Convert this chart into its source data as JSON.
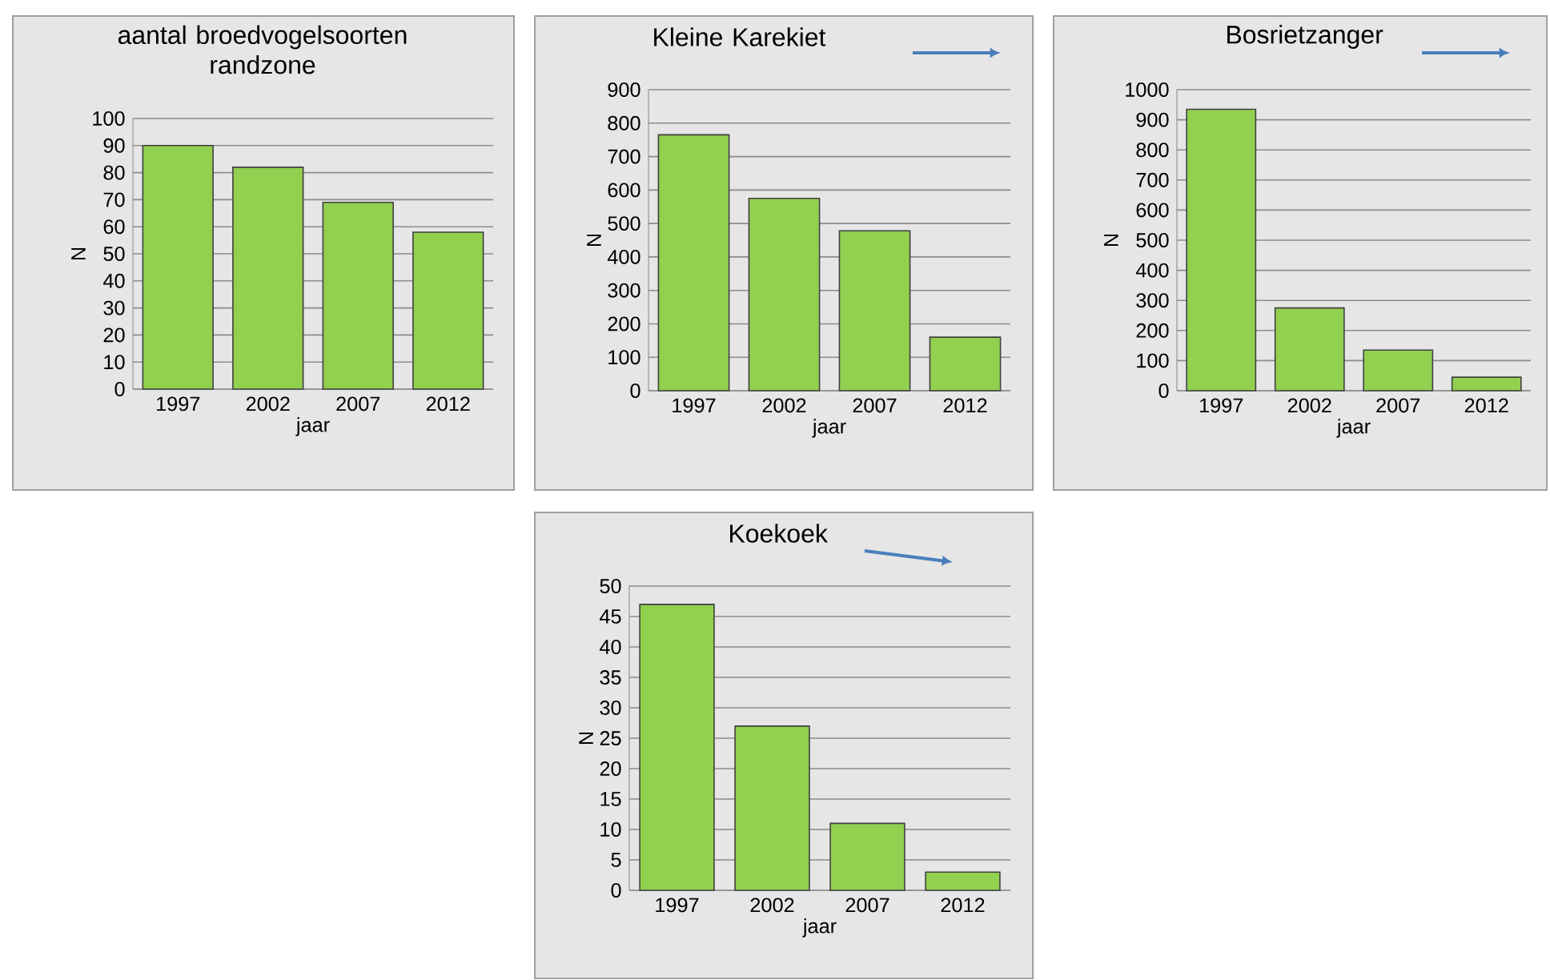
{
  "chart_data": [
    {
      "type": "bar",
      "title": "aantal broedvogelsoorten randzone",
      "xlabel": "jaar",
      "ylabel": "N",
      "categories": [
        "1997",
        "2002",
        "2007",
        "2012"
      ],
      "values": [
        90,
        82,
        69,
        58
      ],
      "color": "#92d050",
      "ylim": [
        0,
        100
      ],
      "yticks": [
        0,
        10,
        20,
        30,
        40,
        50,
        60,
        70,
        80,
        90,
        100
      ],
      "grid": "y"
    },
    {
      "type": "bar",
      "title": "Kleine Karekiet",
      "xlabel": "jaar",
      "ylabel": "N",
      "categories": [
        "1997",
        "2002",
        "2007",
        "2012"
      ],
      "values": [
        765,
        575,
        478,
        160
      ],
      "color": "#92d050",
      "ylim": [
        0,
        900
      ],
      "yticks": [
        0,
        100,
        200,
        300,
        400,
        500,
        600,
        700,
        800,
        900
      ],
      "grid": "y"
    },
    {
      "type": "bar",
      "title": "Bosrietzanger",
      "xlabel": "jaar",
      "ylabel": "N",
      "categories": [
        "1997",
        "2002",
        "2007",
        "2012"
      ],
      "values": [
        935,
        275,
        135,
        45
      ],
      "color": "#92d050",
      "ylim": [
        0,
        1000
      ],
      "yticks": [
        0,
        100,
        200,
        300,
        400,
        500,
        600,
        700,
        800,
        900,
        1000
      ],
      "grid": "y"
    },
    {
      "type": "bar",
      "title": "Koekoek",
      "xlabel": "jaar",
      "ylabel": "N",
      "categories": [
        "1997",
        "2002",
        "2007",
        "2012"
      ],
      "values": [
        47,
        27,
        11,
        3
      ],
      "color": "#92d050",
      "ylim": [
        0,
        50
      ],
      "yticks": [
        0,
        5,
        10,
        15,
        20,
        25,
        30,
        35,
        40,
        45,
        50
      ],
      "grid": "y"
    }
  ]
}
